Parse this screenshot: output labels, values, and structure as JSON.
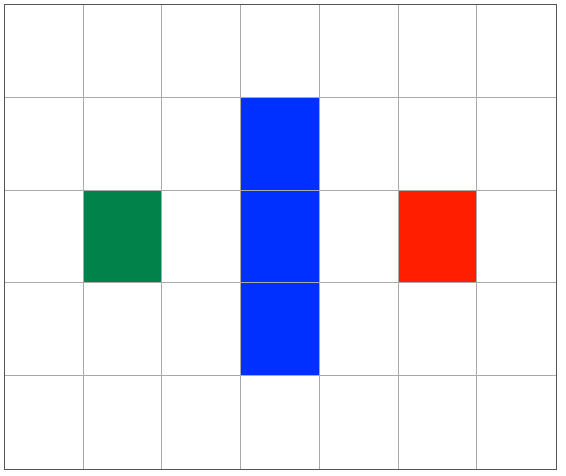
{
  "board": {
    "columns": 7,
    "rows": 5,
    "empty_color": "#ffffff",
    "grid_line_color": "#aaaaaa",
    "border_color": "#555555"
  },
  "pieces": [
    {
      "name": "green-block",
      "color": "#00824a",
      "row": 2,
      "col": 1
    },
    {
      "name": "blue-block",
      "color": "#0030ff",
      "row": 1,
      "col": 3
    },
    {
      "name": "blue-block",
      "color": "#0030ff",
      "row": 2,
      "col": 3
    },
    {
      "name": "blue-block",
      "color": "#0030ff",
      "row": 3,
      "col": 3
    },
    {
      "name": "red-block",
      "color": "#ff1e00",
      "row": 2,
      "col": 5
    }
  ]
}
